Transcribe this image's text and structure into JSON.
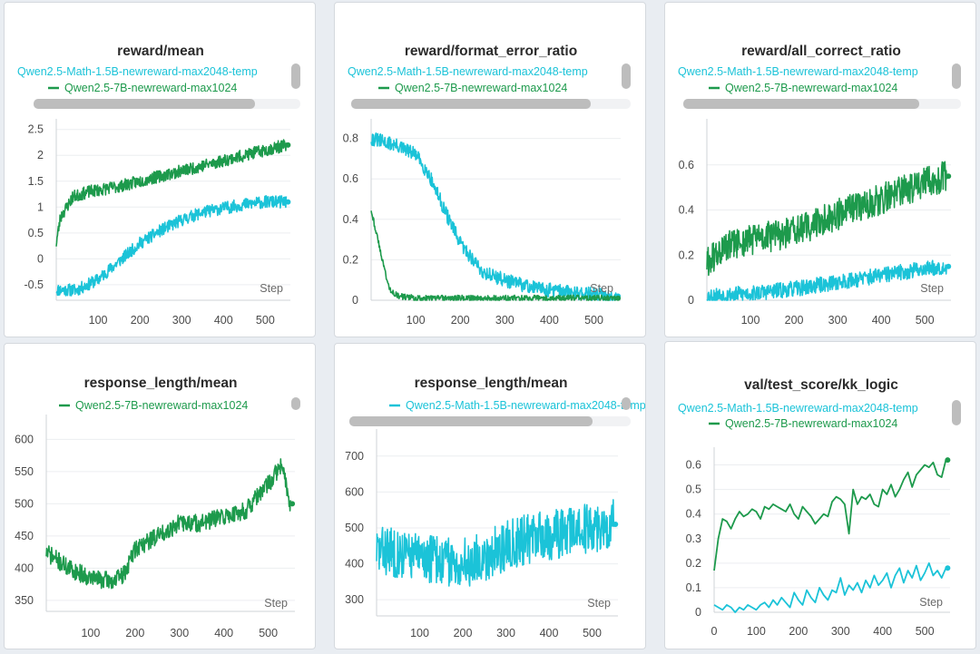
{
  "colors": {
    "teal": "#1bc3d8",
    "green": "#1d9a4c"
  },
  "icons": {
    "legend_marker": "dash-line",
    "scrollbar": "scrollbar-thumb"
  },
  "chart_data": [
    {
      "type": "line",
      "title": "reward/mean",
      "xlabel": "Step",
      "xlim": [
        0,
        560
      ],
      "ylim": [
        -0.8,
        2.6
      ],
      "xticks": [
        100,
        200,
        300,
        400,
        500
      ],
      "yticks": [
        -0.5,
        0,
        0.5,
        1,
        1.5,
        2,
        2.5
      ],
      "legend": [
        "Qwen2.5-Math-1.5B-newreward-max2048-temp",
        "Qwen2.5-7B-newreward-max1024"
      ],
      "series": [
        {
          "name": "Qwen2.5-Math-1.5B-newreward-max2048-temp",
          "color": "teal",
          "noise": 0.12,
          "seed": 11,
          "x": [
            0,
            50,
            100,
            150,
            200,
            250,
            300,
            350,
            400,
            450,
            500,
            550
          ],
          "values": [
            -0.6,
            -0.6,
            -0.4,
            -0.05,
            0.3,
            0.55,
            0.75,
            0.9,
            0.98,
            1.05,
            1.1,
            1.1
          ]
        },
        {
          "name": "Qwen2.5-7B-newreward-max1024",
          "color": "green",
          "noise": 0.12,
          "seed": 23,
          "x": [
            0,
            10,
            40,
            80,
            150,
            200,
            250,
            300,
            350,
            400,
            450,
            500,
            550
          ],
          "values": [
            0.3,
            0.8,
            1.2,
            1.3,
            1.4,
            1.5,
            1.6,
            1.7,
            1.8,
            1.9,
            2.0,
            2.1,
            2.2
          ]
        }
      ]
    },
    {
      "type": "line",
      "title": "reward/format_error_ratio",
      "xlabel": "Step",
      "xlim": [
        0,
        560
      ],
      "ylim": [
        0,
        0.87
      ],
      "xticks": [
        100,
        200,
        300,
        400,
        500
      ],
      "yticks": [
        0,
        0.2,
        0.4,
        0.6,
        0.8
      ],
      "legend": [
        "Qwen2.5-Math-1.5B-newreward-max2048-temp",
        "Qwen2.5-7B-newreward-max1024"
      ],
      "series": [
        {
          "name": "Qwen2.5-Math-1.5B-newreward-max2048-temp",
          "color": "teal",
          "noise": 0.035,
          "seed": 31,
          "x": [
            0,
            50,
            100,
            130,
            170,
            200,
            250,
            300,
            350,
            400,
            450,
            500,
            550
          ],
          "values": [
            0.8,
            0.77,
            0.72,
            0.62,
            0.42,
            0.28,
            0.14,
            0.1,
            0.07,
            0.05,
            0.04,
            0.03,
            0.02
          ]
        },
        {
          "name": "Qwen2.5-7B-newreward-max1024",
          "color": "green",
          "noise": 0.015,
          "seed": 43,
          "x": [
            0,
            5,
            20,
            40,
            60,
            100,
            200,
            300,
            400,
            500,
            550
          ],
          "values": [
            0.45,
            0.4,
            0.25,
            0.06,
            0.02,
            0.01,
            0.01,
            0.01,
            0.01,
            0.01,
            0.01
          ]
        }
      ]
    },
    {
      "type": "line",
      "title": "reward/all_correct_ratio",
      "xlabel": "Step",
      "xlim": [
        0,
        560
      ],
      "ylim": [
        0,
        0.78
      ],
      "xticks": [
        100,
        200,
        300,
        400,
        500
      ],
      "yticks": [
        0,
        0.2,
        0.4,
        0.6
      ],
      "legend": [
        "Qwen2.5-Math-1.5B-newreward-max2048-temp",
        "Qwen2.5-7B-newreward-max1024"
      ],
      "series": [
        {
          "name": "Qwen2.5-Math-1.5B-newreward-max2048-temp",
          "color": "teal",
          "noise": 0.035,
          "seed": 53,
          "x": [
            0,
            100,
            200,
            300,
            400,
            500,
            550
          ],
          "values": [
            0.02,
            0.03,
            0.05,
            0.08,
            0.11,
            0.14,
            0.15
          ]
        },
        {
          "name": "Qwen2.5-7B-newreward-max1024",
          "color": "green",
          "noise": 0.07,
          "seed": 61,
          "x": [
            0,
            50,
            100,
            200,
            300,
            400,
            500,
            550
          ],
          "values": [
            0.17,
            0.24,
            0.27,
            0.3,
            0.38,
            0.45,
            0.52,
            0.55
          ]
        }
      ]
    },
    {
      "type": "line",
      "title": "response_length/mean",
      "xlabel": "Step",
      "xlim": [
        0,
        560
      ],
      "ylim": [
        333,
        630
      ],
      "xticks": [
        100,
        200,
        300,
        400,
        500
      ],
      "yticks": [
        350,
        400,
        450,
        500,
        550,
        600
      ],
      "legend": [
        "Qwen2.5-7B-newreward-max1024"
      ],
      "series": [
        {
          "name": "Qwen2.5-7B-newreward-max1024",
          "color": "green",
          "noise": 14,
          "seed": 71,
          "x": [
            0,
            50,
            100,
            150,
            175,
            200,
            250,
            300,
            350,
            400,
            450,
            500,
            530,
            550
          ],
          "values": [
            425,
            400,
            385,
            380,
            390,
            430,
            450,
            470,
            470,
            480,
            490,
            530,
            560,
            500
          ]
        }
      ]
    },
    {
      "type": "line",
      "title": "response_length/mean",
      "xlabel": "Step",
      "xlim": [
        0,
        560
      ],
      "ylim": [
        255,
        760
      ],
      "xticks": [
        100,
        200,
        300,
        400,
        500
      ],
      "yticks": [
        300,
        400,
        500,
        600,
        700
      ],
      "legend": [
        "Qwen2.5-Math-1.5B-newreward-max2048-temp"
      ],
      "series": [
        {
          "name": "Qwen2.5-Math-1.5B-newreward-max2048-temp",
          "color": "teal",
          "noise": 70,
          "seed": 83,
          "x": [
            0,
            100,
            150,
            200,
            250,
            300,
            350,
            400,
            450,
            500,
            550
          ],
          "values": [
            440,
            420,
            410,
            400,
            420,
            450,
            470,
            480,
            490,
            500,
            510
          ]
        }
      ]
    },
    {
      "type": "line",
      "title": "val/test_score/kk_logic",
      "xlabel": "Step",
      "xlim": [
        0,
        560
      ],
      "ylim": [
        0,
        0.65
      ],
      "xticks": [
        0,
        100,
        200,
        300,
        400,
        500
      ],
      "yticks": [
        0,
        0.1,
        0.2,
        0.3,
        0.4,
        0.5,
        0.6
      ],
      "legend": [
        "Qwen2.5-Math-1.5B-newreward-max2048-temp",
        "Qwen2.5-7B-newreward-max1024"
      ],
      "series": [
        {
          "name": "Qwen2.5-Math-1.5B-newreward-max2048-temp",
          "color": "teal",
          "noise": 0,
          "seed": 1,
          "x": [
            0,
            10,
            20,
            30,
            40,
            50,
            60,
            70,
            80,
            90,
            100,
            110,
            120,
            130,
            140,
            150,
            160,
            170,
            180,
            190,
            200,
            210,
            220,
            230,
            240,
            250,
            260,
            270,
            280,
            290,
            300,
            310,
            320,
            330,
            340,
            350,
            360,
            370,
            380,
            390,
            400,
            410,
            420,
            430,
            440,
            450,
            460,
            470,
            480,
            490,
            500,
            510,
            520,
            530,
            540,
            550
          ],
          "values": [
            0.03,
            0.02,
            0.01,
            0.03,
            0.02,
            0.0,
            0.02,
            0.01,
            0.03,
            0.02,
            0.01,
            0.03,
            0.04,
            0.02,
            0.05,
            0.03,
            0.06,
            0.04,
            0.02,
            0.08,
            0.05,
            0.03,
            0.09,
            0.06,
            0.04,
            0.1,
            0.07,
            0.05,
            0.09,
            0.08,
            0.14,
            0.07,
            0.11,
            0.09,
            0.12,
            0.08,
            0.13,
            0.1,
            0.15,
            0.11,
            0.13,
            0.16,
            0.1,
            0.15,
            0.18,
            0.12,
            0.17,
            0.14,
            0.19,
            0.13,
            0.16,
            0.2,
            0.15,
            0.17,
            0.14,
            0.18
          ]
        },
        {
          "name": "Qwen2.5-7B-newreward-max1024",
          "color": "green",
          "noise": 0,
          "seed": 2,
          "x": [
            0,
            10,
            20,
            30,
            40,
            50,
            60,
            70,
            80,
            90,
            100,
            110,
            120,
            130,
            140,
            150,
            160,
            170,
            180,
            190,
            200,
            210,
            220,
            230,
            240,
            250,
            260,
            270,
            280,
            290,
            300,
            310,
            320,
            330,
            340,
            350,
            360,
            370,
            380,
            390,
            400,
            410,
            420,
            430,
            440,
            450,
            460,
            470,
            480,
            490,
            500,
            510,
            520,
            530,
            540,
            550
          ],
          "values": [
            0.17,
            0.3,
            0.38,
            0.37,
            0.34,
            0.38,
            0.41,
            0.39,
            0.4,
            0.42,
            0.41,
            0.38,
            0.43,
            0.42,
            0.44,
            0.43,
            0.42,
            0.41,
            0.44,
            0.4,
            0.38,
            0.43,
            0.41,
            0.39,
            0.36,
            0.38,
            0.4,
            0.39,
            0.45,
            0.47,
            0.46,
            0.44,
            0.32,
            0.5,
            0.44,
            0.47,
            0.46,
            0.48,
            0.44,
            0.43,
            0.5,
            0.48,
            0.52,
            0.47,
            0.5,
            0.54,
            0.57,
            0.51,
            0.56,
            0.58,
            0.6,
            0.59,
            0.61,
            0.56,
            0.55,
            0.62
          ]
        }
      ]
    }
  ]
}
